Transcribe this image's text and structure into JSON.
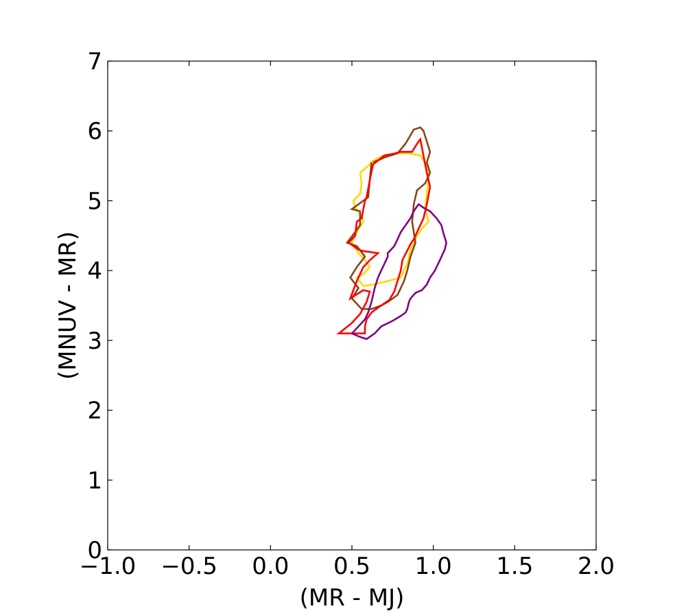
{
  "chart_data": {
    "type": "line",
    "title": "",
    "xlabel": "(MR - MJ)",
    "ylabel": "(MNUV - MR)",
    "xlim": [
      -1.0,
      2.0
    ],
    "ylim": [
      0,
      7
    ],
    "x_ticks": [
      -1.0,
      -0.5,
      0.0,
      0.5,
      1.0,
      1.5,
      2.0
    ],
    "x_tick_labels": [
      "−1.0",
      "−0.5",
      "0.0",
      "0.5",
      "1.0",
      "1.5",
      "2.0"
    ],
    "y_ticks": [
      0,
      1,
      2,
      3,
      4,
      5,
      6,
      7
    ],
    "y_tick_labels": [
      "0",
      "1",
      "2",
      "3",
      "4",
      "5",
      "6",
      "7"
    ],
    "grid": false,
    "legend": "none",
    "series": [
      {
        "color": "#FFD700",
        "x": [
          0.55,
          0.6,
          0.62,
          0.65,
          0.7,
          0.78,
          0.85,
          0.92,
          0.96,
          0.97,
          0.96,
          0.95,
          0.97,
          0.93,
          0.9,
          0.86,
          0.84,
          0.82,
          0.8,
          0.77,
          0.72,
          0.63,
          0.57,
          0.53,
          0.57,
          0.61,
          0.58,
          0.54,
          0.5,
          0.53,
          0.57,
          0.56,
          0.52,
          0.51,
          0.55,
          0.56,
          0.55
        ],
        "y": [
          5.4,
          5.5,
          5.55,
          5.6,
          5.65,
          5.68,
          5.68,
          5.65,
          5.5,
          5.3,
          5.1,
          4.9,
          4.7,
          4.6,
          4.5,
          4.3,
          4.1,
          4.0,
          3.9,
          3.88,
          3.85,
          3.8,
          3.78,
          3.9,
          3.95,
          4.05,
          4.15,
          4.25,
          4.4,
          4.55,
          4.7,
          4.8,
          4.9,
          5.0,
          5.1,
          5.25,
          5.4
        ]
      },
      {
        "color": "#8B4513",
        "x": [
          0.63,
          0.7,
          0.78,
          0.83,
          0.88,
          0.92,
          0.94,
          0.96,
          0.98,
          0.96,
          0.98,
          0.95,
          0.9,
          0.88,
          0.87,
          0.89,
          0.86,
          0.84,
          0.82,
          0.8,
          0.78,
          0.75,
          0.72,
          0.68,
          0.62,
          0.56,
          0.5,
          0.54,
          0.49,
          0.53,
          0.58,
          0.53,
          0.47,
          0.52,
          0.55,
          0.55,
          0.5,
          0.6,
          0.62
        ],
        "y": [
          5.55,
          5.62,
          5.68,
          5.82,
          6.02,
          6.05,
          6.0,
          5.85,
          5.7,
          5.55,
          5.4,
          5.25,
          5.15,
          4.95,
          4.7,
          4.4,
          4.2,
          4.0,
          3.85,
          3.75,
          3.65,
          3.6,
          3.55,
          3.5,
          3.45,
          3.45,
          3.6,
          3.75,
          3.9,
          4.05,
          4.2,
          4.35,
          4.4,
          4.55,
          4.65,
          4.85,
          4.88,
          5.05,
          5.55
        ]
      },
      {
        "color": "#FF0000",
        "x": [
          0.7,
          0.75,
          0.8,
          0.87,
          0.89,
          0.91,
          0.92,
          0.96,
          0.98,
          0.96,
          0.94,
          0.9,
          0.88,
          0.86,
          0.81,
          0.8,
          0.78,
          0.76,
          0.73,
          0.68,
          0.62,
          0.59,
          0.58,
          0.58,
          0.46,
          0.42,
          0.5,
          0.55,
          0.59,
          0.61,
          0.57,
          0.49,
          0.53,
          0.57,
          0.61,
          0.66,
          0.57,
          0.54,
          0.48,
          0.52,
          0.53,
          0.56,
          0.58,
          0.59,
          0.61,
          0.63,
          0.7
        ],
        "y": [
          5.65,
          5.67,
          5.7,
          5.7,
          5.78,
          5.85,
          5.88,
          5.4,
          5.2,
          4.95,
          4.75,
          4.55,
          4.45,
          4.38,
          4.15,
          4.0,
          3.85,
          3.7,
          3.58,
          3.5,
          3.4,
          3.3,
          3.2,
          3.1,
          3.1,
          3.1,
          3.25,
          3.38,
          3.55,
          3.7,
          3.72,
          3.6,
          3.85,
          4.05,
          4.15,
          4.25,
          4.28,
          4.3,
          4.4,
          4.5,
          4.7,
          4.75,
          5.0,
          5.05,
          5.3,
          5.52,
          5.65
        ]
      },
      {
        "color": "#800080",
        "x": [
          0.5,
          0.54,
          0.58,
          0.6,
          0.62,
          0.64,
          0.66,
          0.68,
          0.7,
          0.72,
          0.72,
          0.76,
          0.78,
          0.8,
          0.83,
          0.86,
          0.88,
          0.9,
          0.91,
          0.94,
          0.98,
          1.02,
          1.05,
          1.06,
          1.08,
          1.07,
          1.04,
          1.01,
          0.98,
          0.96,
          0.93,
          0.89,
          0.86,
          0.85,
          0.84,
          0.83,
          0.8,
          0.75,
          0.68,
          0.64,
          0.59,
          0.55,
          0.5
        ],
        "y": [
          3.1,
          3.2,
          3.3,
          3.4,
          3.55,
          3.75,
          3.9,
          4.0,
          4.1,
          4.2,
          4.25,
          4.35,
          4.45,
          4.55,
          4.65,
          4.75,
          4.85,
          4.92,
          4.95,
          4.9,
          4.85,
          4.75,
          4.65,
          4.55,
          4.4,
          4.3,
          4.15,
          4.0,
          3.9,
          3.8,
          3.72,
          3.68,
          3.6,
          3.55,
          3.45,
          3.4,
          3.35,
          3.28,
          3.2,
          3.1,
          3.02,
          3.05,
          3.1
        ]
      }
    ]
  }
}
